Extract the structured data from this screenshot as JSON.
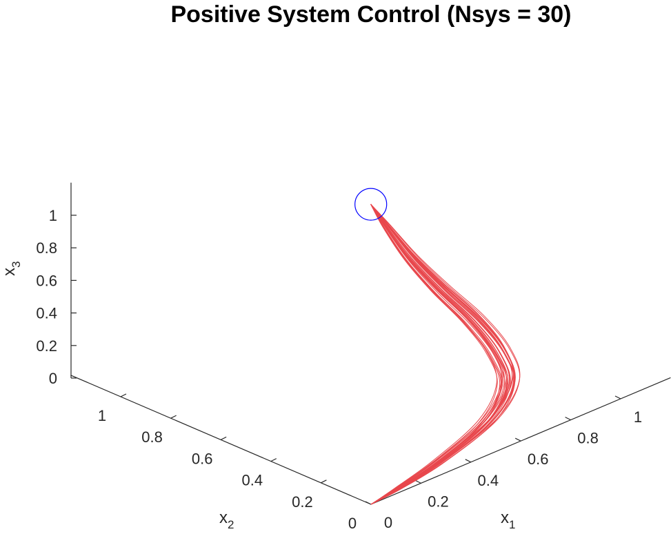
{
  "chart_data": {
    "type": "line",
    "projection": "3d",
    "title": "Positive System Control (Nsys = 30)",
    "num_systems": 30,
    "xlabel": "x",
    "xlabel_sub": "1",
    "ylabel": "x",
    "ylabel_sub": "2",
    "zlabel": "x",
    "zlabel_sub": "3",
    "xlim": [
      0,
      1.2
    ],
    "ylim": [
      0,
      1.2
    ],
    "zlim": [
      0,
      1.2
    ],
    "x_ticks": [
      0,
      0.2,
      0.4,
      0.6,
      0.8,
      1
    ],
    "y_ticks": [
      0,
      0.2,
      0.4,
      0.6,
      0.8,
      1
    ],
    "z_ticks": [
      0,
      0.2,
      0.4,
      0.6,
      0.8,
      1
    ],
    "x_tick_labels": [
      "0",
      "0.2",
      "0.4",
      "0.6",
      "0.8",
      "1"
    ],
    "y_tick_labels": [
      "0",
      "0.2",
      "0.4",
      "0.6",
      "0.8",
      "1"
    ],
    "z_tick_labels": [
      "0",
      "0.2",
      "0.4",
      "0.6",
      "0.8",
      "1"
    ],
    "grid": false,
    "trajectory_color": "#e8474c",
    "marker_color": "#0000ff",
    "start_point": {
      "x": 0.3,
      "y": 0.3,
      "z": 1.45
    },
    "end_point": {
      "x": 0,
      "y": 0,
      "z": 0
    },
    "trajectory_waypoints": [
      {
        "x": 0.3,
        "y": 0.3,
        "z": 1.45
      },
      {
        "x": 0.33,
        "y": 0.27,
        "z": 1.32
      },
      {
        "x": 0.38,
        "y": 0.22,
        "z": 1.12
      },
      {
        "x": 0.46,
        "y": 0.18,
        "z": 0.9
      },
      {
        "x": 0.55,
        "y": 0.14,
        "z": 0.68
      },
      {
        "x": 0.62,
        "y": 0.11,
        "z": 0.46
      },
      {
        "x": 0.63,
        "y": 0.08,
        "z": 0.28
      },
      {
        "x": 0.52,
        "y": 0.05,
        "z": 0.14
      },
      {
        "x": 0.3,
        "y": 0.025,
        "z": 0.05
      },
      {
        "x": 0.12,
        "y": 0.01,
        "z": 0.012
      },
      {
        "x": 0.0,
        "y": 0.0,
        "z": 0.0
      }
    ]
  }
}
